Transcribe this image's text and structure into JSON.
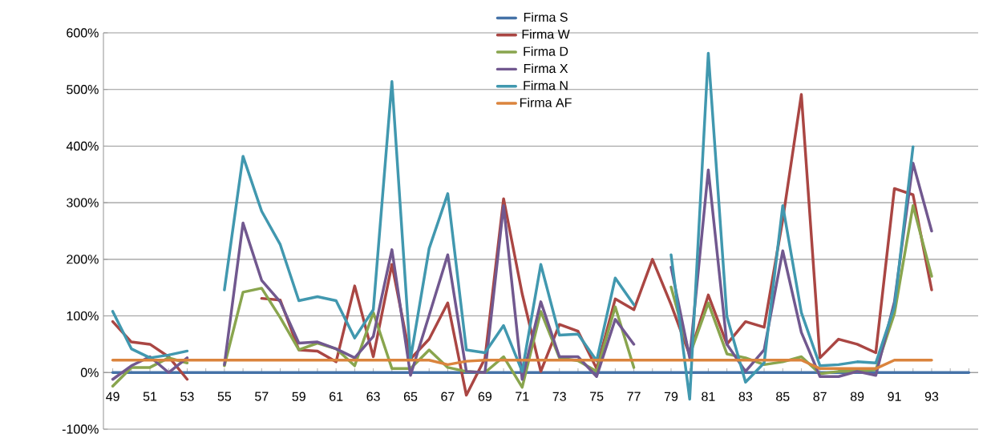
{
  "chart_data": {
    "type": "line",
    "categories": [
      "49",
      null,
      "51",
      null,
      "53",
      null,
      "55",
      null,
      "57",
      null,
      "59",
      null,
      "61",
      null,
      "63",
      null,
      "65",
      null,
      "67",
      null,
      "69",
      null,
      "71",
      null,
      "73",
      null,
      "75",
      null,
      "77",
      null,
      "79",
      null,
      "81",
      null,
      "83",
      null,
      "85",
      null,
      "87",
      null,
      "89",
      null,
      "91",
      null,
      "93",
      null,
      null
    ],
    "series": [
      {
        "name": "Firma S",
        "color": "#4572a7",
        "values": [
          0,
          0,
          0,
          0,
          0,
          0,
          0,
          0,
          0,
          0,
          0,
          0,
          0,
          0,
          0,
          0,
          0,
          0,
          0,
          0,
          0,
          0,
          0,
          0,
          0,
          0,
          0,
          0,
          0,
          0,
          0,
          0,
          0,
          0,
          0,
          0,
          0,
          0,
          0,
          0,
          0,
          0,
          0,
          0,
          0,
          0,
          0
        ]
      },
      {
        "name": "Firma W",
        "color": "#aa4643",
        "values": [
          90,
          54,
          50,
          28,
          -12,
          null,
          null,
          null,
          131,
          128,
          40,
          38,
          19,
          153,
          28,
          191,
          24,
          59,
          123,
          -40,
          25,
          307,
          139,
          2,
          85,
          73,
          7,
          130,
          111,
          200,
          120,
          31,
          137,
          50,
          90,
          80,
          270,
          491,
          26,
          59,
          50,
          35,
          325,
          314,
          146,
          null,
          null
        ]
      },
      {
        "name": "Firma D",
        "color": "#89a54e",
        "values": [
          -24,
          9,
          9,
          26,
          17,
          null,
          12,
          142,
          149,
          97,
          40,
          52,
          42,
          12,
          106,
          7,
          7,
          40,
          9,
          2,
          0,
          28,
          -26,
          108,
          26,
          21,
          2,
          116,
          9,
          null,
          151,
          31,
          123,
          33,
          26,
          14,
          19,
          28,
          -2,
          2,
          2,
          5,
          104,
          295,
          170,
          null,
          null
        ]
      },
      {
        "name": "Firma X",
        "color": "#71588f",
        "values": [
          -12,
          12,
          28,
          0,
          26,
          null,
          14,
          264,
          163,
          125,
          52,
          54,
          42,
          26,
          64,
          217,
          -5,
          101,
          208,
          2,
          0,
          295,
          -12,
          125,
          28,
          28,
          -7,
          94,
          50,
          null,
          186,
          26,
          358,
          50,
          2,
          40,
          215,
          71,
          -7,
          -7,
          2,
          -5,
          125,
          370,
          250,
          null,
          null
        ]
      },
      {
        "name": "Firma N",
        "color": "#4198af",
        "values": [
          108,
          42,
          26,
          31,
          38,
          null,
          146,
          382,
          285,
          226,
          127,
          134,
          127,
          61,
          111,
          514,
          24,
          219,
          316,
          40,
          35,
          83,
          2,
          191,
          66,
          68,
          21,
          167,
          120,
          null,
          208,
          -47,
          564,
          99,
          -17,
          17,
          295,
          106,
          12,
          14,
          19,
          17,
          116,
          399,
          null,
          null,
          null
        ]
      },
      {
        "name": "Firma AF",
        "color": "#db843d",
        "values": [
          22,
          22,
          22,
          22,
          22,
          22,
          22,
          22,
          22,
          22,
          22,
          22,
          22,
          22,
          22,
          22,
          22,
          22,
          14,
          20,
          22,
          22,
          22,
          22,
          22,
          22,
          22,
          22,
          22,
          22,
          22,
          22,
          22,
          22,
          22,
          22,
          22,
          22,
          7,
          7,
          7,
          7,
          22,
          22,
          22,
          null,
          null
        ]
      }
    ],
    "ylim": [
      -100,
      600
    ],
    "yticks": [
      {
        "value": -100,
        "label": "-100%"
      },
      {
        "value": 0,
        "label": "0%"
      },
      {
        "value": 100,
        "label": "100%"
      },
      {
        "value": 200,
        "label": "200%"
      },
      {
        "value": 300,
        "label": "300%"
      },
      {
        "value": 400,
        "label": "400%"
      },
      {
        "value": 500,
        "label": "500%"
      },
      {
        "value": 600,
        "label": "600%"
      }
    ],
    "grid": "y",
    "legend": "top",
    "marker": "none",
    "line_style": "solid"
  }
}
